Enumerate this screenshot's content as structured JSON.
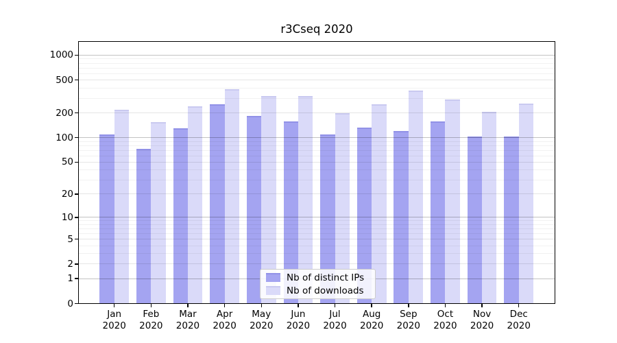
{
  "chart_data": {
    "type": "bar",
    "title": "r3Cseq 2020",
    "categories": [
      "Jan",
      "Feb",
      "Mar",
      "Apr",
      "May",
      "Jun",
      "Jul",
      "Aug",
      "Sep",
      "Oct",
      "Nov",
      "Dec"
    ],
    "year": "2020",
    "series": [
      {
        "name": "Nb of distinct IPs",
        "color": "#a4a4f1",
        "edge_color": "#9191e7",
        "values": [
          110,
          73,
          130,
          253,
          182,
          158,
          110,
          132,
          121,
          158,
          103,
          103
        ]
      },
      {
        "name": "Nb of downloads",
        "color": "#dadaf9",
        "edge_color": "#c9c9f0",
        "values": [
          220,
          155,
          240,
          385,
          322,
          322,
          200,
          255,
          370,
          290,
          206,
          258
        ]
      }
    ],
    "yticks": [
      0,
      1,
      2,
      5,
      10,
      20,
      50,
      100,
      200,
      500,
      1000
    ],
    "ylim": [
      0,
      1490
    ],
    "yscale": "log10(value+1)",
    "grid": "horizontal, major and minor",
    "legend_position": "lower-center"
  }
}
